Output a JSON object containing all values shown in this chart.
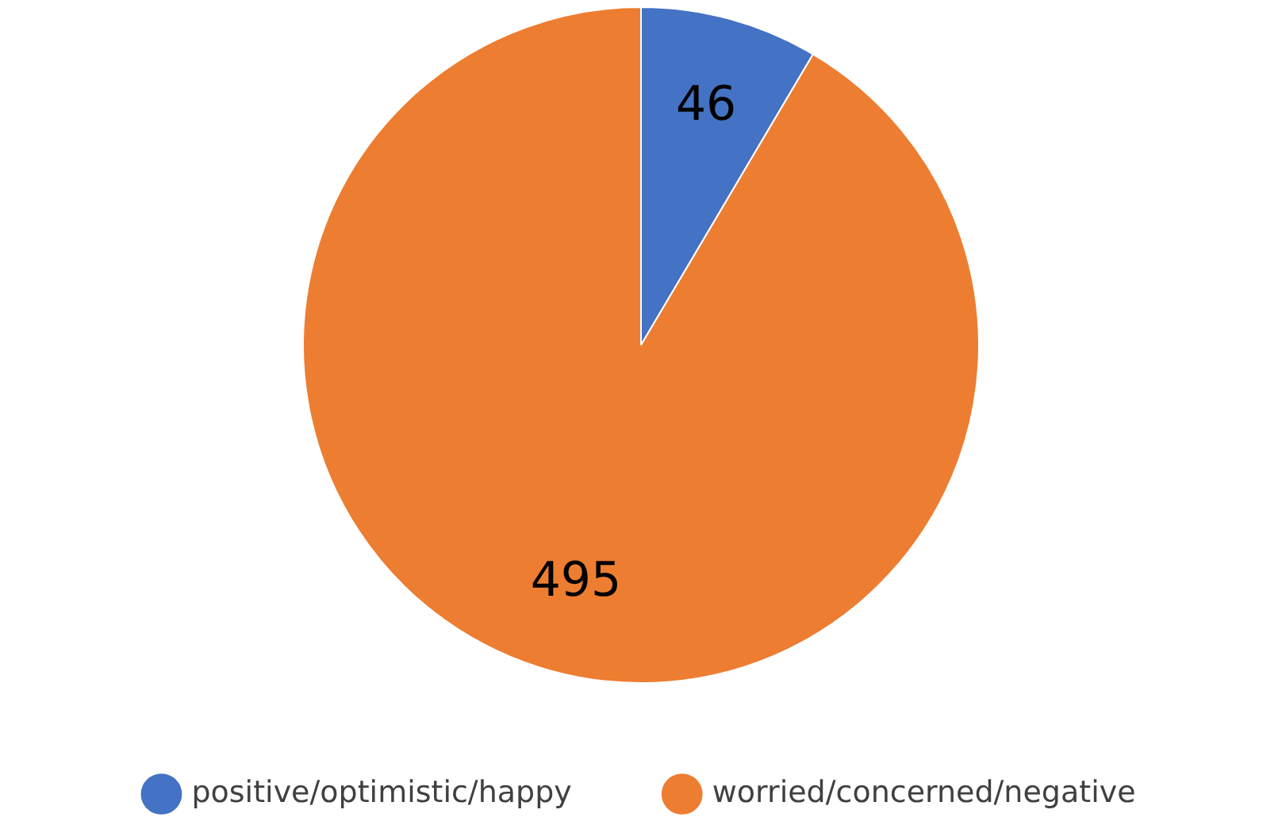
{
  "chart_data": {
    "type": "pie",
    "categories": [
      "positive/optimistic/happy",
      "worried/concerned/negative"
    ],
    "values": [
      46,
      495
    ],
    "colors": [
      "#4472c4",
      "#ed7d31"
    ],
    "data_labels": true,
    "legend": "bottom"
  }
}
